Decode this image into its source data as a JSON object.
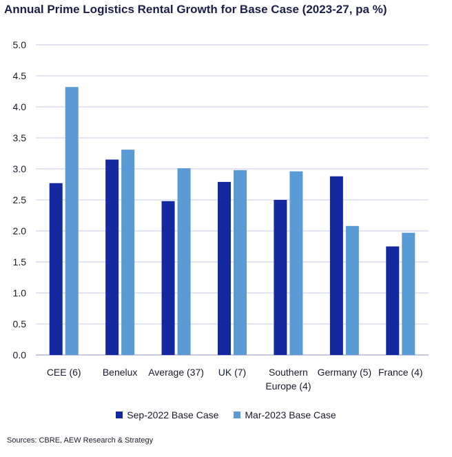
{
  "title": "Annual Prime Logistics Rental Growth for Base Case (2023-27, pa %)",
  "source": "Sources: CBRE, AEW Research & Strategy",
  "colors": {
    "series1": "#1428a0",
    "series2": "#5b9bd5",
    "grid": "#c5cae6"
  },
  "chart_data": {
    "type": "bar",
    "title": "Annual Prime Logistics Rental Growth for Base Case (2023-27, pa %)",
    "xlabel": "",
    "ylabel": "",
    "ylim": [
      0,
      5
    ],
    "yticks": [
      "0.0",
      "0.5",
      "1.0",
      "1.5",
      "2.0",
      "2.5",
      "3.0",
      "3.5",
      "4.0",
      "4.5",
      "5.0"
    ],
    "grid": true,
    "legend_position": "bottom",
    "categories": [
      [
        "CEE (6)"
      ],
      [
        "Benelux"
      ],
      [
        "Average (37)"
      ],
      [
        "UK (7)"
      ],
      [
        "Southern",
        "Europe (4)"
      ],
      [
        "Germany (5)"
      ],
      [
        "France (4)"
      ]
    ],
    "series": [
      {
        "name": "Sep-2022 Base Case",
        "values": [
          2.77,
          3.15,
          2.48,
          2.79,
          2.5,
          2.88,
          1.75
        ]
      },
      {
        "name": "Mar-2023 Base Case",
        "values": [
          4.32,
          3.31,
          3.01,
          2.98,
          2.96,
          2.08,
          1.97
        ]
      }
    ]
  }
}
